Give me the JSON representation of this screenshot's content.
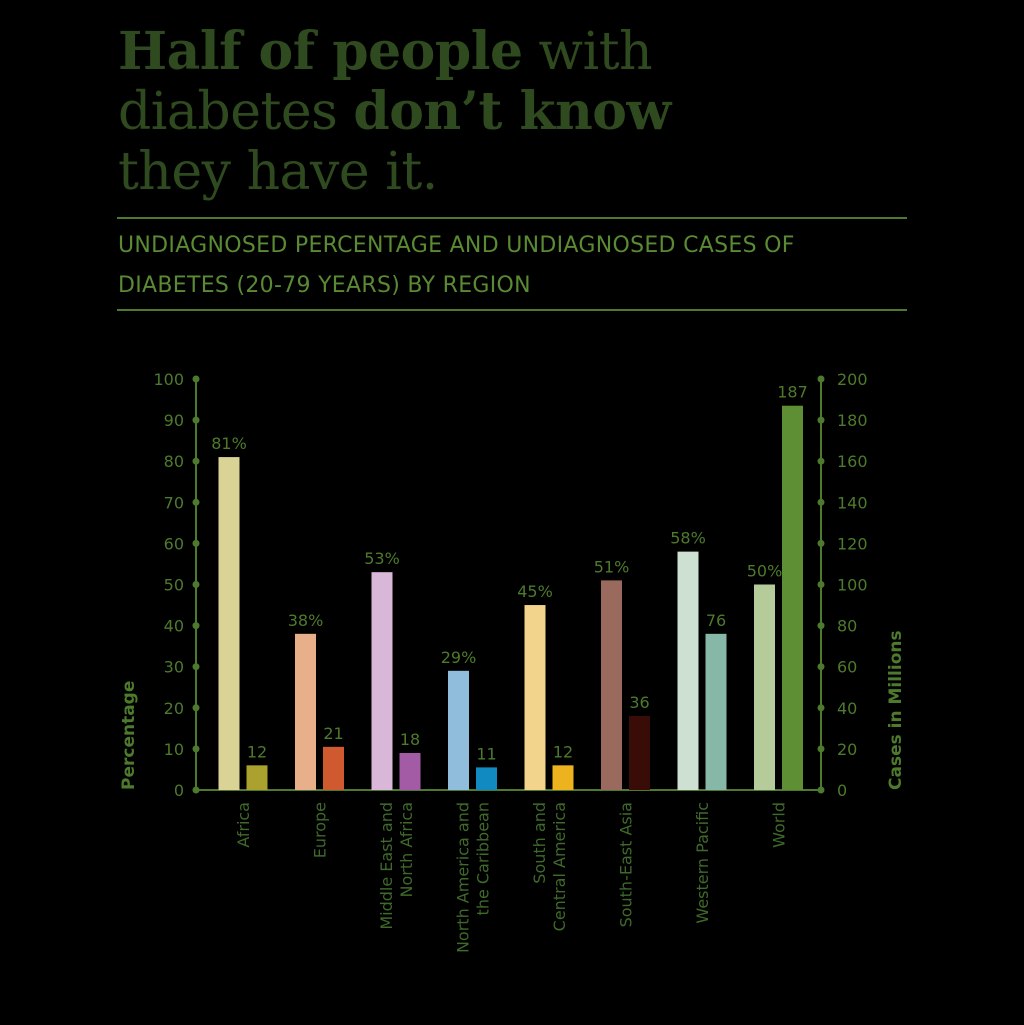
{
  "headline": {
    "line1_bold": "Half of people",
    "line1_rest": " with",
    "line2_start": "diabetes ",
    "line2_bold": "don’t know",
    "line3": "they have it."
  },
  "subtitle": "UNDIAGNOSED PERCENTAGE AND UNDIAGNOSED CASES OF DIABETES (20-79 YEARS) BY REGION",
  "colors": {
    "axis": "#4d7a2c",
    "text": "#4d7a2c",
    "label": "#3f6a2a"
  },
  "chart_data": {
    "type": "bar",
    "categories": [
      "Africa",
      "Europe",
      "Middle East and\nNorth Africa",
      "North America and\nthe Caribbean",
      "South and\nCentral America",
      "South-East Asia",
      "Western Pacific",
      "World"
    ],
    "series": [
      {
        "axis": "left",
        "values": [
          81,
          38,
          53,
          29,
          45,
          51,
          58,
          50
        ],
        "labels": [
          "81%",
          "38%",
          "53%",
          "29%",
          "45%",
          "51%",
          "58%",
          "50%"
        ],
        "colors": [
          "#d9d496",
          "#e8b08a",
          "#d9b7d9",
          "#8fbddb",
          "#f2d48d",
          "#9b6a5e",
          "#cde0d2",
          "#b5cc9a"
        ]
      },
      {
        "axis": "right",
        "values": [
          12,
          21,
          18,
          11,
          12,
          36,
          76,
          187
        ],
        "labels": [
          "12",
          "21",
          "18",
          "11",
          "12",
          "36",
          "76",
          "187"
        ],
        "colors": [
          "#aba12f",
          "#cf5a2f",
          "#a45ba6",
          "#118ac2",
          "#ecb31e",
          "#3a0c08",
          "#87b8a7",
          "#5e8f34"
        ]
      }
    ],
    "ylabel": "Percentage",
    "y2label": "Cases in Millions",
    "ylim": [
      0,
      100
    ],
    "y2lim": [
      0,
      200
    ],
    "yticks": [
      0,
      10,
      20,
      30,
      40,
      50,
      60,
      70,
      80,
      90,
      100
    ],
    "y2ticks": [
      0,
      20,
      40,
      60,
      80,
      100,
      120,
      140,
      160,
      180,
      200
    ]
  }
}
